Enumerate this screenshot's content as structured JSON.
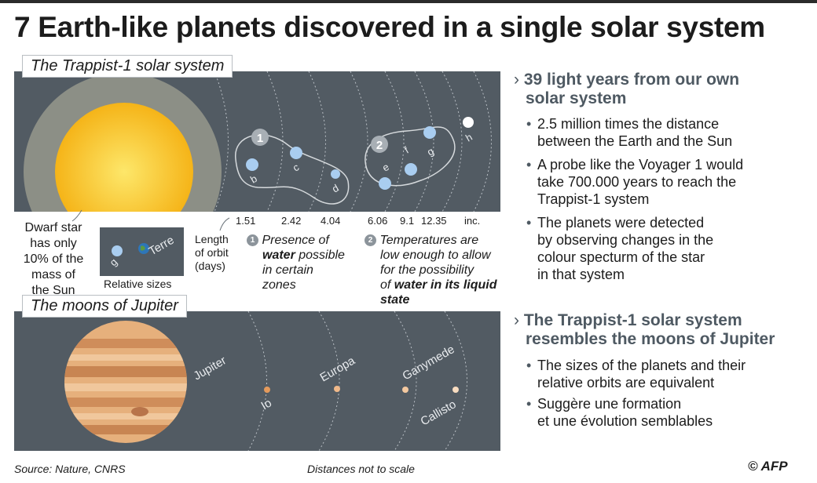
{
  "title": "7 Earth-like planets discovered in a single solar system",
  "trappist": {
    "tag": "The Trappist-1 solar system",
    "star_caption": [
      "Dwarf star",
      "has only",
      "10% of the",
      "mass of",
      "the Sun"
    ],
    "planets": [
      "b",
      "c",
      "d",
      "e",
      "f",
      "g",
      "h"
    ],
    "group_badges": [
      "1",
      "2"
    ],
    "orbit_label": [
      "Length",
      "of orbit",
      "(days)"
    ],
    "orbits": [
      "1.51",
      "2.42",
      "4.04",
      "6.06",
      "9.1",
      "12.35",
      "inc."
    ],
    "relative": {
      "caption": "Relative sizes",
      "planet": "g",
      "earth": "Terre"
    },
    "note1": {
      "badge": "1",
      "l1": "Presence of",
      "l2a": "water",
      "l2b": " possible",
      "l3": "in certain",
      "l4": "zones"
    },
    "note2": {
      "badge": "2",
      "l1": "Temperatures are",
      "l2": "low enough to allow",
      "l3": "for the possibility",
      "l4a": "of ",
      "l4b": "water in its liquid",
      "l5": "state"
    }
  },
  "jupiter": {
    "tag": "The moons of Jupiter",
    "labels": {
      "jupiter": "Jupiter",
      "io": "Io",
      "europa": "Europa",
      "ganymede": "Ganymede",
      "callisto": "Callisto"
    }
  },
  "right": {
    "h1": [
      "39 light years from our own",
      "solar system"
    ],
    "b1": [
      [
        "2.5 million times the distance",
        "between the Earth and the Sun"
      ],
      [
        "A probe like the Voyager 1 would",
        "take 700.000 years to reach the",
        "Trappist-1 system"
      ],
      [
        "The planets were detected",
        "by observing changes in the",
        "colour specturm of the star",
        "in that system"
      ]
    ],
    "h2": [
      "The Trappist-1 solar system",
      "resembles the moons of Jupiter"
    ],
    "b2": [
      [
        "The sizes of the planets and their",
        "relative orbits are equivalent"
      ],
      [
        "Suggère une formation",
        "et une évolution semblables"
      ]
    ]
  },
  "footer": {
    "source": "Source: Nature, CNRS",
    "scale": "Distances not to scale",
    "credit": "© AFP"
  },
  "colors": {
    "panel": "#525b63",
    "sun": "#f9c62b",
    "planet": "#a9cdf0",
    "moon": "#f0b98a",
    "accent": "#4e5962"
  }
}
